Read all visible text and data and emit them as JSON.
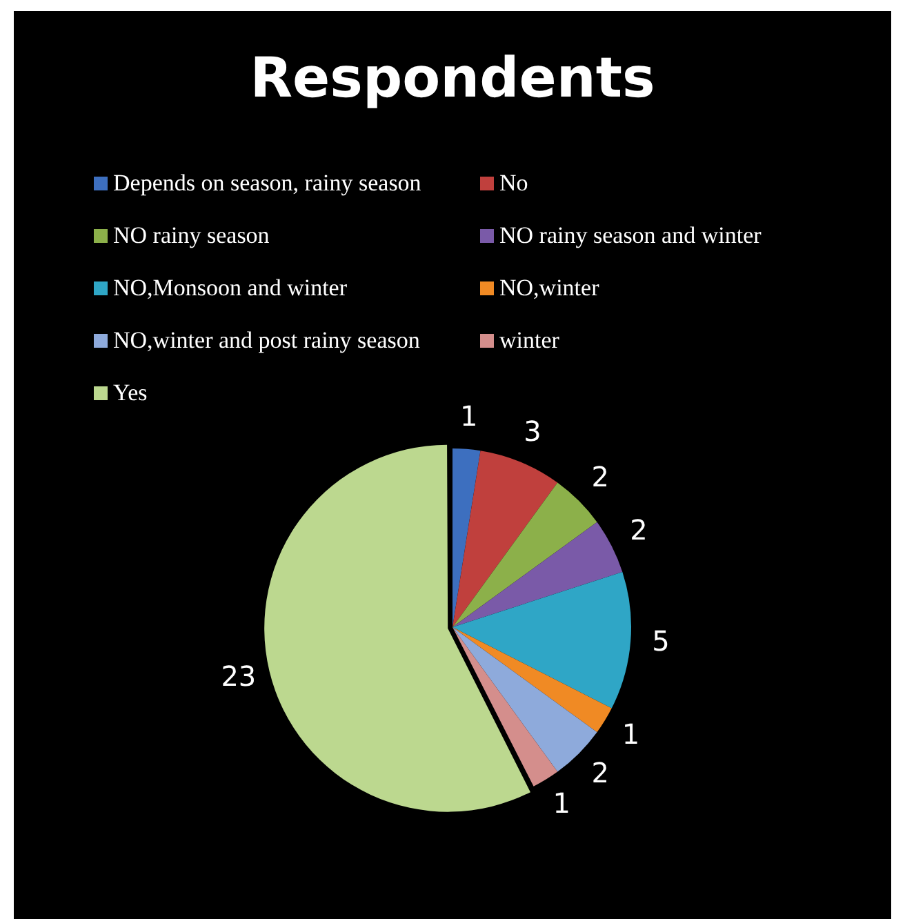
{
  "chart_data": {
    "type": "pie",
    "title": "Respondents",
    "categories": [
      "Depends on season, rainy season",
      "No",
      "NO rainy season",
      "NO rainy season and winter",
      "NO,Monsoon and winter",
      "NO,winter",
      "NO,winter and post rainy season",
      "winter",
      "Yes"
    ],
    "values": [
      1,
      3,
      2,
      2,
      5,
      1,
      2,
      1,
      23
    ],
    "colors": [
      "#3d6fbf",
      "#c0403d",
      "#8cb04a",
      "#7a5aa8",
      "#2fa6c6",
      "#f08a24",
      "#8eaadb",
      "#d48e8c",
      "#bcd88f"
    ],
    "legend": "top",
    "data_labels": true
  }
}
